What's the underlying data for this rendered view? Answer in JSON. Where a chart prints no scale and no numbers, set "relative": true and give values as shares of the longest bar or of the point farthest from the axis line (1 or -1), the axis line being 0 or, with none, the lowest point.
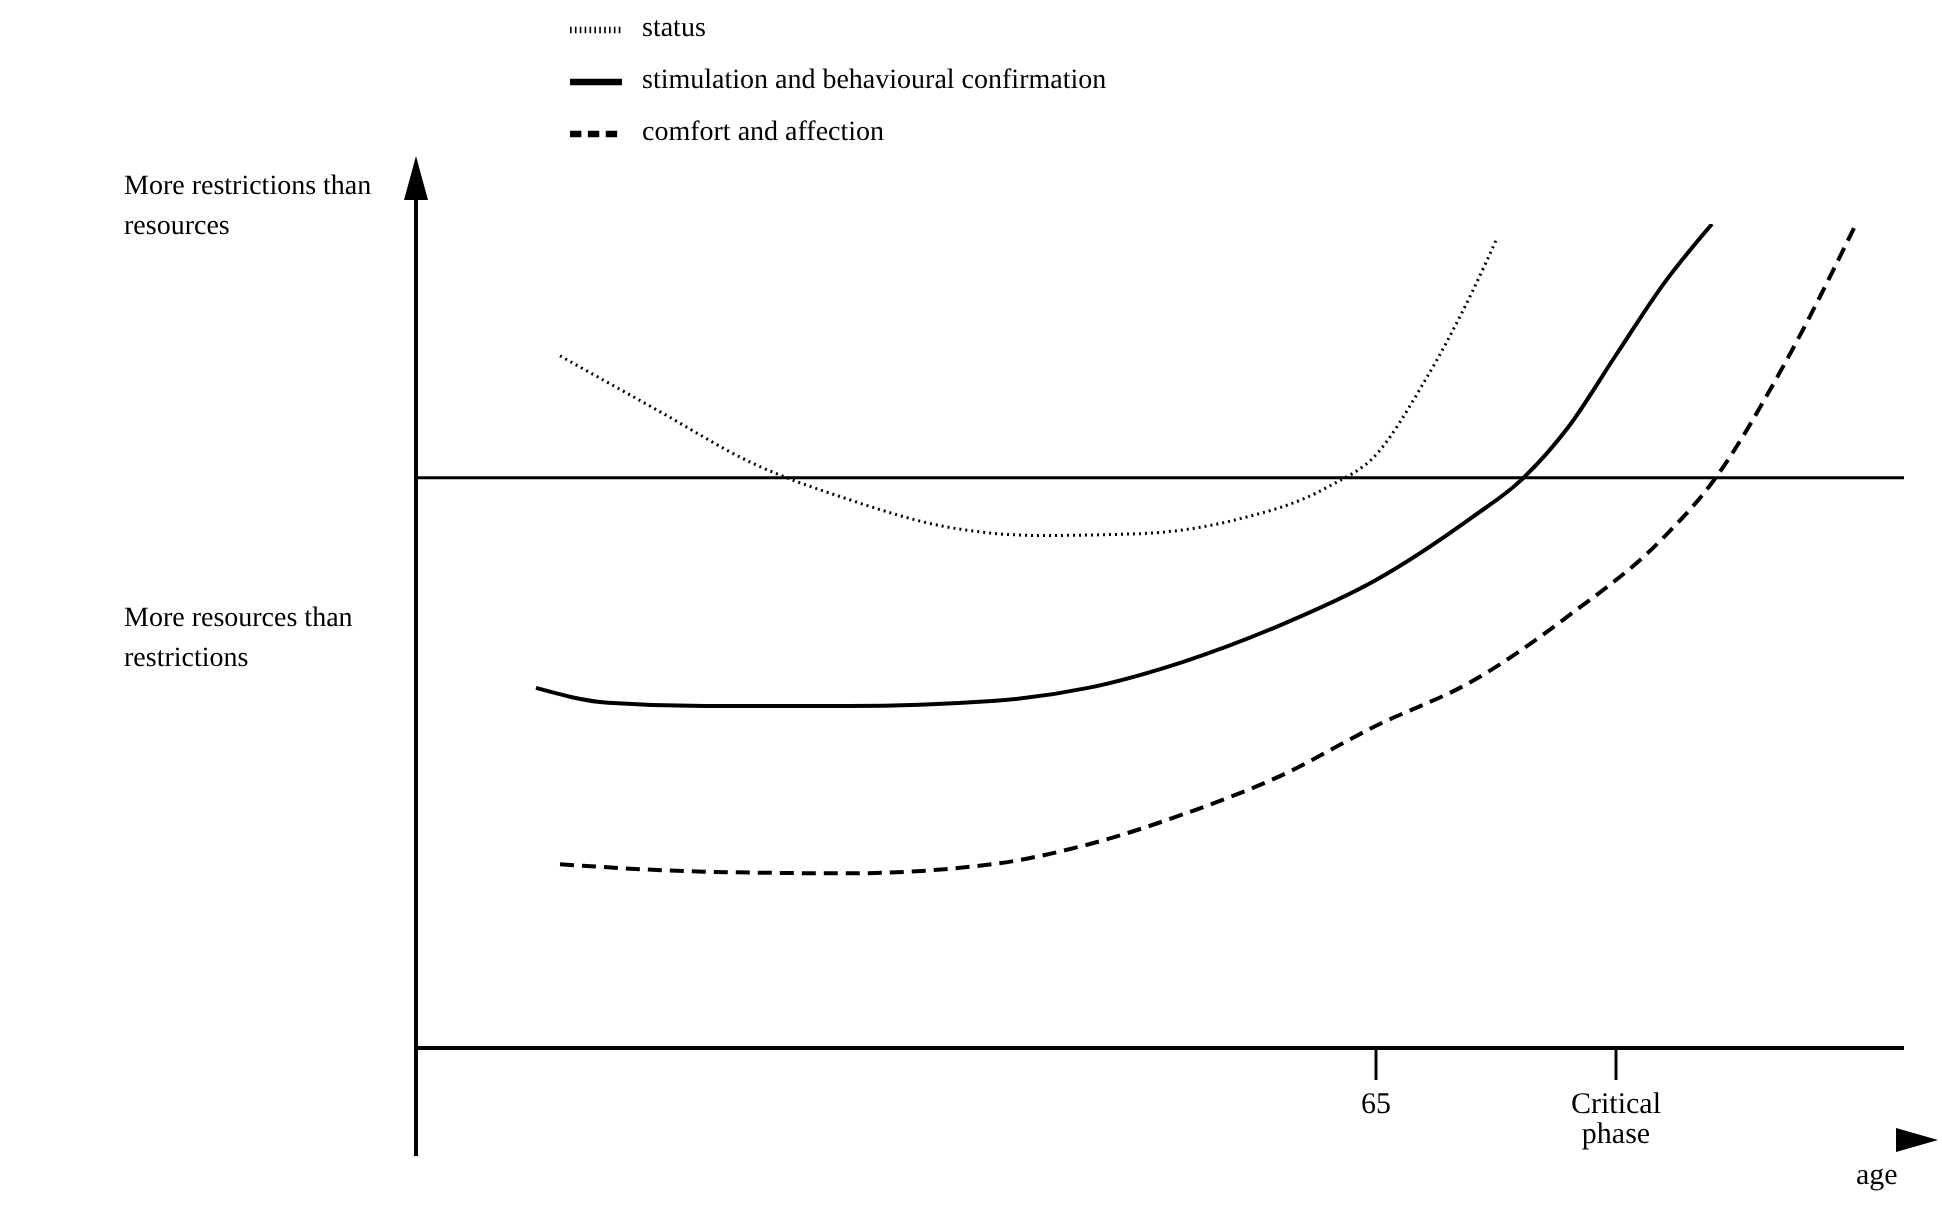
{
  "chart_data": {
    "type": "line",
    "relative": true,
    "xlabel": "age",
    "marker": "none",
    "legend": "top",
    "categories": [
      null,
      null,
      null,
      null,
      null,
      null,
      null,
      null,
      null,
      null,
      null,
      null,
      null,
      null,
      null,
      null,
      null,
      null,
      null,
      null,
      null,
      null,
      null,
      null,
      null,
      null,
      null,
      null,
      null,
      null,
      null,
      null,
      null,
      null,
      null,
      null,
      null,
      null,
      null,
      null,
      "65",
      null,
      null,
      null,
      null,
      null,
      null,
      null,
      null,
      null,
      "Critical phase",
      null,
      null,
      null,
      null,
      null,
      null,
      null,
      null,
      null,
      null,
      null,
      null
    ],
    "series": [
      {
        "name": "status",
        "color": "#000000",
        "line_style": "dotted",
        "values": [
          null,
          null,
          null,
          null,
          null,
          null,
          0.84,
          null,
          null,
          null,
          0.775,
          null,
          null,
          null,
          0.71,
          null,
          null,
          null,
          0.666,
          null,
          null,
          null,
          0.633,
          null,
          null,
          null,
          0.622,
          null,
          null,
          null,
          0.624,
          null,
          null,
          null,
          0.64,
          null,
          null,
          null,
          0.681,
          null,
          0.72,
          null,
          0.808,
          null,
          0.917,
          0.98,
          null,
          null,
          null,
          null,
          null,
          null,
          null,
          null,
          null,
          null,
          null,
          null,
          null,
          null,
          null,
          null,
          null
        ]
      },
      {
        "name": "stimulation and behavioural confirmation",
        "color": "#000000",
        "line_style": "solid",
        "values": [
          null,
          null,
          null,
          null,
          null,
          0.437,
          null,
          null,
          0.419,
          null,
          null,
          null,
          0.415,
          null,
          null,
          null,
          null,
          null,
          0.415,
          null,
          null,
          null,
          null,
          null,
          0.421,
          null,
          null,
          null,
          0.437,
          null,
          null,
          null,
          0.469,
          null,
          null,
          null,
          0.513,
          null,
          null,
          null,
          0.568,
          null,
          null,
          null,
          0.644,
          null,
          0.688,
          null,
          0.753,
          null,
          0.841,
          null,
          0.928,
          null,
          1,
          null,
          null,
          null,
          null,
          null,
          null,
          null,
          null
        ]
      },
      {
        "name": "comfort and affection",
        "color": "#000000",
        "line_style": "dashed",
        "values": [
          null,
          null,
          null,
          null,
          null,
          null,
          0.223,
          null,
          null,
          null,
          null,
          null,
          0.214,
          null,
          null,
          null,
          null,
          null,
          0.212,
          null,
          null,
          null,
          null,
          null,
          0.223,
          null,
          null,
          null,
          0.247,
          null,
          null,
          null,
          0.284,
          null,
          null,
          null,
          0.33,
          null,
          null,
          null,
          0.391,
          null,
          null,
          null,
          0.445,
          null,
          null,
          null,
          0.524,
          null,
          null,
          null,
          0.62,
          null,
          0.686,
          null,
          null,
          0.829,
          null,
          null,
          1,
          null,
          null
        ]
      }
    ],
    "ref_lines": [
      {
        "axis": "y",
        "value": 0.692,
        "color": "#000000"
      }
    ],
    "annotations": [
      "More restrictions than resources",
      "More resources than restrictions"
    ]
  }
}
